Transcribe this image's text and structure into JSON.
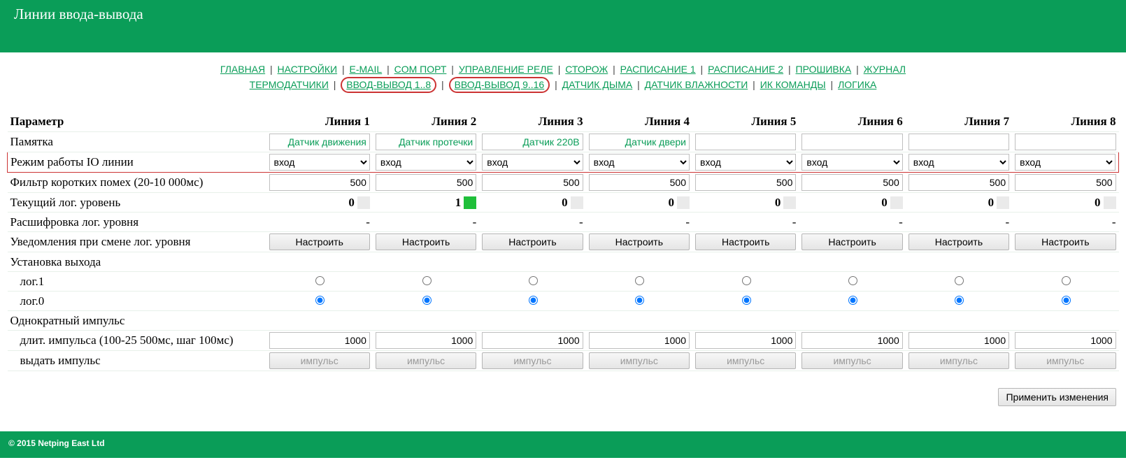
{
  "header": {
    "title": "Линии ввода-вывода"
  },
  "nav": {
    "row1": [
      {
        "label": "ГЛАВНАЯ",
        "circled": false
      },
      {
        "label": "НАСТРОЙКИ",
        "circled": false
      },
      {
        "label": "E-MAIL",
        "circled": false
      },
      {
        "label": "COM ПОРТ",
        "circled": false
      },
      {
        "label": "УПРАВЛЕНИЕ РЕЛЕ",
        "circled": false
      },
      {
        "label": "СТОРОЖ",
        "circled": false
      },
      {
        "label": "РАСПИСАНИЕ 1",
        "circled": false
      },
      {
        "label": "РАСПИСАНИЕ 2",
        "circled": false
      },
      {
        "label": "ПРОШИВКА",
        "circled": false
      },
      {
        "label": "ЖУРНАЛ",
        "circled": false
      }
    ],
    "row2": [
      {
        "label": "ТЕРМОДАТЧИКИ",
        "circled": false
      },
      {
        "label": "ВВОД-ВЫВОД 1..8",
        "circled": true
      },
      {
        "label": "ВВОД-ВЫВОД 9..16",
        "circled": true
      },
      {
        "label": "ДАТЧИК ДЫМА",
        "circled": false
      },
      {
        "label": "ДАТЧИК ВЛАЖНОСТИ",
        "circled": false
      },
      {
        "label": "ИК КОМАНДЫ",
        "circled": false
      },
      {
        "label": "ЛОГИКА",
        "circled": false
      }
    ]
  },
  "table": {
    "param_header": "Параметр",
    "columns": [
      "Линия 1",
      "Линия 2",
      "Линия 3",
      "Линия 4",
      "Линия 5",
      "Линия 6",
      "Линия 7",
      "Линия 8"
    ],
    "rows": {
      "memo": {
        "label": "Памятка",
        "vals": [
          "Датчик движения",
          "Датчик протечки",
          "Датчик 220В",
          "Датчик двери",
          "",
          "",
          "",
          ""
        ]
      },
      "mode": {
        "label": "Режим работы IO линии",
        "selected": "вход",
        "vals": [
          "вход",
          "вход",
          "вход",
          "вход",
          "вход",
          "вход",
          "вход",
          "вход"
        ]
      },
      "filter": {
        "label": "Фильтр коротких помех (20-10 000мс)",
        "vals": [
          "500",
          "500",
          "500",
          "500",
          "500",
          "500",
          "500",
          "500"
        ]
      },
      "level": {
        "label": "Текущий лог. уровень",
        "vals": [
          "0",
          "1",
          "0",
          "0",
          "0",
          "0",
          "0",
          "0"
        ],
        "on": [
          false,
          true,
          false,
          false,
          false,
          false,
          false,
          false
        ]
      },
      "decode": {
        "label": "Расшифровка лог. уровня",
        "vals": [
          "-",
          "-",
          "-",
          "-",
          "-",
          "-",
          "-",
          "-"
        ]
      },
      "notify": {
        "label": "Уведомления при смене лог. уровня",
        "button": "Настроить"
      },
      "setout": {
        "label": "Установка выхода"
      },
      "log1": {
        "label": "лог.1",
        "checked": [
          false,
          false,
          false,
          false,
          false,
          false,
          false,
          false
        ]
      },
      "log0": {
        "label": "лог.0",
        "checked": [
          true,
          true,
          true,
          true,
          true,
          true,
          true,
          true
        ]
      },
      "single": {
        "label": "Однократный импульс"
      },
      "dur": {
        "label": "длит. импульса (100-25 500мс, шаг 100мс)",
        "vals": [
          "1000",
          "1000",
          "1000",
          "1000",
          "1000",
          "1000",
          "1000",
          "1000"
        ]
      },
      "emit": {
        "label": "выдать импульс",
        "button": "импульс"
      }
    }
  },
  "apply_button": "Применить изменения",
  "footer": "© 2015 Netping East Ltd",
  "colors": {
    "brand": "#0a9d58",
    "highlight": "#cc3333",
    "level_on": "#1fbf3a"
  }
}
